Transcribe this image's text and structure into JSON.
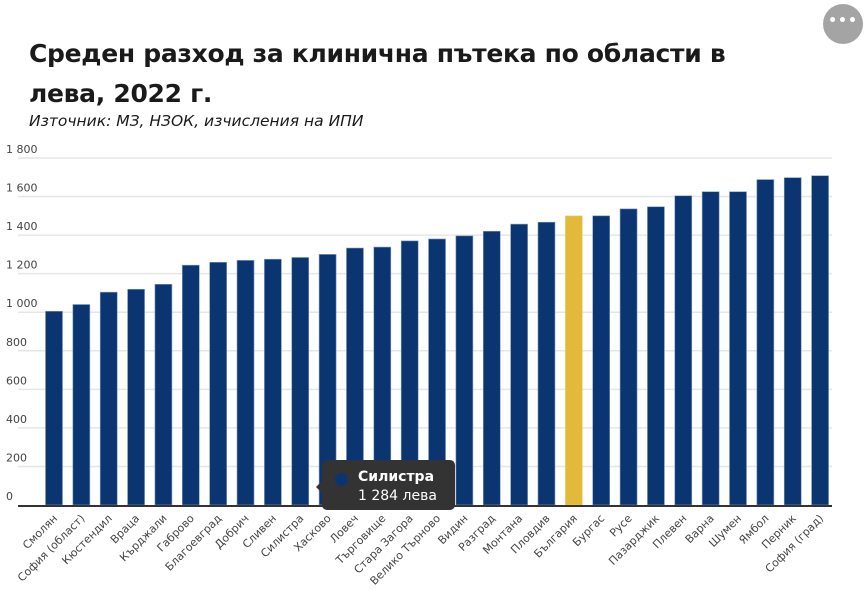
{
  "header": {
    "title": "Среден разход за клинична пътека по области в лева, 2022 г.",
    "subtitle": "Източник: МЗ, НЗОК, изчисления на ИПИ",
    "menu_icon": "more-horizontal-icon",
    "menu_label": "•••"
  },
  "colors": {
    "bar": "#0b3570",
    "highlight": "#e3b93a",
    "grid": "#e6e6e6",
    "axis": "#333333",
    "tooltip_bg": "#333333"
  },
  "tooltip": {
    "category": "Силистра",
    "value_text": "1 284 лева"
  },
  "chart_data": {
    "type": "bar",
    "title": "Среден разход за клинична пътека по области в лева, 2022 г.",
    "subtitle": "Източник: МЗ, НЗОК, изчисления на ИПИ",
    "xlabel": "",
    "ylabel": "",
    "ylim": [
      0,
      1800
    ],
    "yticks": [
      0,
      200,
      400,
      600,
      800,
      1000,
      1200,
      1400,
      1600,
      1800
    ],
    "ytick_labels": [
      "0",
      "200",
      "400",
      "600",
      "800",
      "1 000",
      "1 200",
      "1 400",
      "1 600",
      "1 800"
    ],
    "grid": true,
    "legend": "none",
    "highlighted_category": "България",
    "categories": [
      "Смолян",
      "София (област)",
      "Кюстендил",
      "Враца",
      "Кърджали",
      "Габрово",
      "Благоевград",
      "Добрич",
      "Сливен",
      "Силистра",
      "Хасково",
      "Ловеч",
      "Търговище",
      "Стара Загора",
      "Велико Търново",
      "Видин",
      "Разград",
      "Монтана",
      "Пловдив",
      "България",
      "Бургас",
      "Русе",
      "Пазарджик",
      "Плевен",
      "Варна",
      "Шумен",
      "Ямбол",
      "Перник",
      "София (град)"
    ],
    "values": [
      1005,
      1040,
      1104,
      1119,
      1145,
      1244,
      1259,
      1269,
      1275,
      1284,
      1300,
      1333,
      1338,
      1370,
      1380,
      1396,
      1420,
      1457,
      1467,
      1500,
      1500,
      1536,
      1547,
      1604,
      1625,
      1625,
      1688,
      1698,
      1708
    ]
  }
}
